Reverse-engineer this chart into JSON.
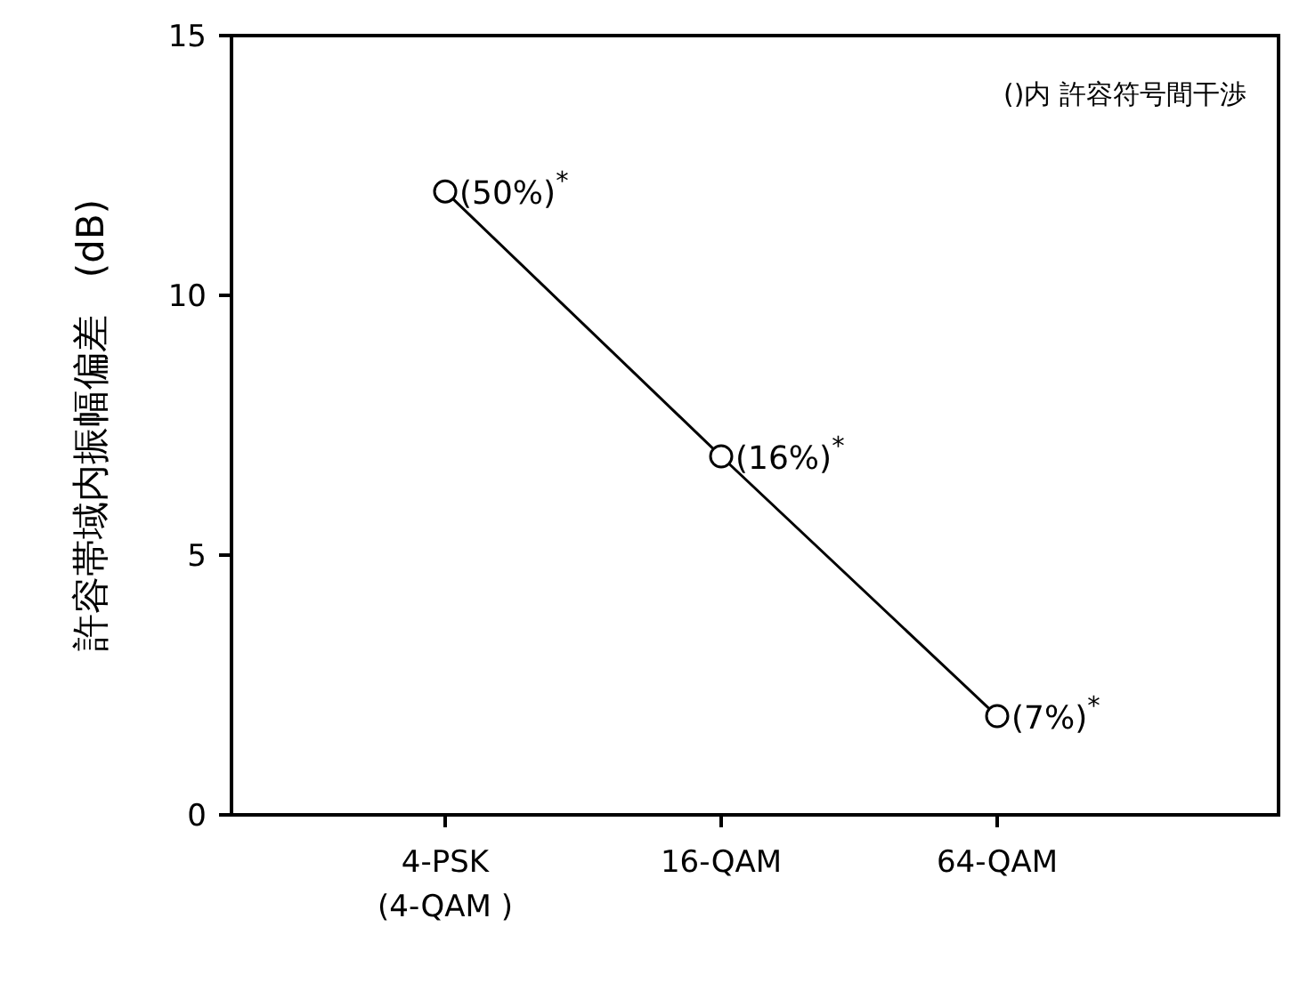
{
  "chart_data": {
    "type": "line",
    "ylabel": "許容帯域内振幅偏差　(dB)",
    "categories": [
      "4-PSK\n(4-QAM )",
      "16-QAM",
      "64-QAM"
    ],
    "values": [
      12,
      6.9,
      1.9
    ],
    "color": "#000000",
    "marker": "circle",
    "line_style": "solid",
    "ylim": [
      0,
      15
    ],
    "yticks": [
      0,
      5,
      10,
      15
    ],
    "annotations": [
      "()内  許容符号間干渉",
      {
        "text": "(50%)$^{*}$",
        "x": "4-PSK\n(4-QAM )",
        "y": 12
      },
      {
        "text": "(16%)$^{*}$",
        "x": "16-QAM",
        "y": 6.9
      },
      {
        "text": "(7%)$^{*}$",
        "x": "64-QAM",
        "y": 1.9
      }
    ]
  }
}
